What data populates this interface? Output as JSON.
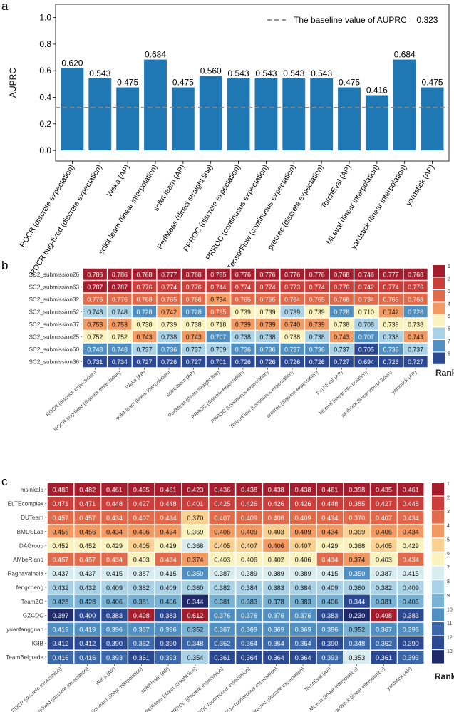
{
  "colors": {
    "bar": "#1f77b4",
    "baseline": "#8a8a8a",
    "rank_palette": [
      "#a51c2c",
      "#cc3e3a",
      "#e06a4a",
      "#f29a62",
      "#fbd191",
      "#fbf3bd",
      "#d8ecf0",
      "#aad2e6",
      "#78b3d5",
      "#4f8fc2",
      "#3a68ab",
      "#2b4893",
      "#1f2a6b"
    ]
  },
  "methods": [
    "ROCR (discrete expectation)",
    "ROCR bug-fixed (discrete expectation)",
    "Weka (AP)",
    "scikit-learn (linear interpolation)",
    "scikit-learn (AP)",
    "PerfMeas (direct straight line)",
    "PRROC (discrete expectation)",
    "PRROC (continuous expectation)",
    "TensorFlow (continuous expectation)",
    "precrec (discrete expectation)",
    "TorchEval (AP)",
    "MLeval (linear interpolation)",
    "yardstick (linear interpolation)",
    "yardstick (AP)"
  ],
  "chart_data": [
    {
      "panel": "a",
      "type": "bar",
      "ylabel": "AUPRC",
      "ylim": [
        -0.08,
        1.1
      ],
      "yticks": [
        "0.0",
        "0.2",
        "0.4",
        "0.6",
        "0.8",
        "1.0"
      ],
      "values": [
        0.62,
        0.543,
        0.475,
        0.684,
        0.475,
        0.56,
        0.543,
        0.543,
        0.543,
        0.543,
        0.475,
        0.416,
        0.684,
        0.475
      ],
      "labels": [
        "0.620",
        "0.543",
        "0.475",
        "0.684",
        "0.475",
        "0.560",
        "0.543",
        "0.543",
        "0.543",
        "0.543",
        "0.475",
        "0.416",
        "0.684",
        "0.475"
      ],
      "baseline": 0.323,
      "legend": "The baseline value of AUPRC = 0.323",
      "legend_position": "top-right"
    },
    {
      "panel": "b",
      "type": "heatmap",
      "rank_title": "Rank",
      "rank_levels": [
        "1",
        "2",
        "3",
        "4",
        "5",
        "6",
        "7",
        "8"
      ],
      "rows": [
        {
          "name": "SC2_submission26",
          "values": [
            "0.786",
            "0.786",
            "0.768",
            "0.777",
            "0.768",
            "0.765",
            "0.776",
            "0.776",
            "0.776",
            "0.776",
            "0.768",
            "0.746",
            "0.777",
            "0.768"
          ],
          "ranks": [
            1,
            1,
            1,
            1,
            1,
            1,
            1,
            1,
            1,
            1,
            1,
            1,
            1,
            1
          ]
        },
        {
          "name": "SC2_submission63",
          "values": [
            "0.787",
            "0.787",
            "0.776",
            "0.774",
            "0.776",
            "0.744",
            "0.774",
            "0.774",
            "0.773",
            "0.774",
            "0.776",
            "0.742",
            "0.774",
            "0.776"
          ],
          "ranks": [
            1,
            1,
            2,
            2,
            2,
            2,
            2,
            2,
            2,
            2,
            2,
            2,
            2,
            2
          ]
        },
        {
          "name": "SC2_submission32",
          "values": [
            "0.776",
            "0.776",
            "0.768",
            "0.765",
            "0.768",
            "0.734",
            "0.765",
            "0.765",
            "0.764",
            "0.765",
            "0.768",
            "0.734",
            "0.765",
            "0.768"
          ],
          "ranks": [
            3,
            3,
            3,
            3,
            3,
            4,
            3,
            3,
            3,
            3,
            3,
            3,
            3,
            3
          ]
        },
        {
          "name": "SC2_submission52",
          "values": [
            "0.748",
            "0.748",
            "0.728",
            "0.742",
            "0.728",
            "0.735",
            "0.739",
            "0.739",
            "0.739",
            "0.739",
            "0.728",
            "0.710",
            "0.742",
            "0.728"
          ],
          "ranks": [
            6,
            6,
            7,
            4,
            7,
            3,
            5,
            5,
            6,
            5,
            7,
            5,
            4,
            7
          ]
        },
        {
          "name": "SC2_submission37",
          "values": [
            "0.753",
            "0.753",
            "0.738",
            "0.739",
            "0.738",
            "0.718",
            "0.739",
            "0.739",
            "0.740",
            "0.739",
            "0.738",
            "0.708",
            "0.739",
            "0.738"
          ],
          "ranks": [
            4,
            4,
            5,
            5,
            5,
            5,
            4,
            4,
            4,
            4,
            5,
            6,
            5,
            5
          ]
        },
        {
          "name": "SC2_submission25",
          "values": [
            "0.752",
            "0.752",
            "0.743",
            "0.738",
            "0.743",
            "0.707",
            "0.738",
            "0.738",
            "0.738",
            "0.738",
            "0.743",
            "0.707",
            "0.738",
            "0.743"
          ],
          "ranks": [
            5,
            5,
            4,
            6,
            4,
            7,
            6,
            6,
            5,
            6,
            4,
            7,
            6,
            4
          ]
        },
        {
          "name": "SC2_submission60",
          "values": [
            "0.748",
            "0.748",
            "0.737",
            "0.736",
            "0.737",
            "0.709",
            "0.736",
            "0.736",
            "0.737",
            "0.736",
            "0.737",
            "0.705",
            "0.736",
            "0.737"
          ],
          "ranks": [
            7,
            7,
            6,
            7,
            6,
            6,
            7,
            7,
            7,
            7,
            6,
            8,
            7,
            6
          ]
        },
        {
          "name": "SC2_submission36",
          "values": [
            "0.731",
            "0.734",
            "0.727",
            "0.726",
            "0.727",
            "0.701",
            "0.726",
            "0.726",
            "0.726",
            "0.726",
            "0.727",
            "0.694",
            "0.726",
            "0.727"
          ],
          "ranks": [
            8,
            8,
            8,
            8,
            8,
            8,
            8,
            8,
            8,
            8,
            8,
            8,
            8,
            8
          ]
        }
      ]
    },
    {
      "panel": "c",
      "type": "heatmap",
      "rank_title": "Rank",
      "rank_levels": [
        "1",
        "2",
        "3",
        "4",
        "5",
        "6",
        "7",
        "8",
        "9",
        "10",
        "11",
        "12",
        "13"
      ],
      "rows": [
        {
          "name": "msinkala",
          "values": [
            "0.483",
            "0.482",
            "0.461",
            "0.435",
            "0.461",
            "0.423",
            "0.436",
            "0.438",
            "0.438",
            "0.438",
            "0.461",
            "0.398",
            "0.435",
            "0.461"
          ],
          "ranks": [
            1,
            1,
            1,
            1,
            1,
            1,
            1,
            1,
            1,
            1,
            1,
            1,
            1,
            1
          ]
        },
        {
          "name": "ELTEcomplex",
          "values": [
            "0.471",
            "0.471",
            "0.448",
            "0.427",
            "0.448",
            "0.401",
            "0.425",
            "0.426",
            "0.426",
            "0.426",
            "0.448",
            "0.385",
            "0.427",
            "0.448"
          ],
          "ranks": [
            2,
            2,
            2,
            2,
            2,
            2,
            2,
            2,
            2,
            2,
            2,
            2,
            2,
            2
          ]
        },
        {
          "name": "DUTeam",
          "values": [
            "0.457",
            "0.457",
            "0.434",
            "0.407",
            "0.434",
            "0.370",
            "0.407",
            "0.409",
            "0.408",
            "0.409",
            "0.434",
            "0.370",
            "0.407",
            "0.434"
          ],
          "ranks": [
            3,
            3,
            3,
            3,
            3,
            5,
            3,
            3,
            3,
            3,
            3,
            3,
            3,
            3
          ]
        },
        {
          "name": "BMDSLab",
          "values": [
            "0.456",
            "0.456",
            "0.434",
            "0.406",
            "0.434",
            "0.369",
            "0.406",
            "0.409",
            "0.403",
            "0.409",
            "0.434",
            "0.369",
            "0.406",
            "0.434"
          ],
          "ranks": [
            4,
            4,
            4,
            4,
            4,
            6,
            4,
            4,
            5,
            4,
            4,
            5,
            4,
            4
          ]
        },
        {
          "name": "DAGroup",
          "values": [
            "0.452",
            "0.452",
            "0.429",
            "0.405",
            "0.429",
            "0.368",
            "0.405",
            "0.407",
            "0.406",
            "0.407",
            "0.429",
            "0.368",
            "0.405",
            "0.429"
          ],
          "ranks": [
            6,
            6,
            6,
            5,
            6,
            7,
            5,
            5,
            4,
            5,
            6,
            6,
            5,
            6
          ]
        },
        {
          "name": "AMbeRland",
          "values": [
            "0.457",
            "0.457",
            "0.434",
            "0.403",
            "0.434",
            "0.374",
            "0.403",
            "0.406",
            "0.402",
            "0.406",
            "0.434",
            "0.374",
            "0.403",
            "0.434"
          ],
          "ranks": [
            3,
            3,
            3,
            6,
            3,
            4,
            6,
            6,
            6,
            6,
            3,
            4,
            6,
            3
          ]
        },
        {
          "name": "RaghavaIndia",
          "values": [
            "0.437",
            "0.437",
            "0.415",
            "0.387",
            "0.415",
            "0.350",
            "0.387",
            "0.389",
            "0.389",
            "0.389",
            "0.415",
            "0.350",
            "0.387",
            "0.415"
          ],
          "ranks": [
            7,
            7,
            7,
            7,
            7,
            10,
            7,
            7,
            7,
            7,
            7,
            10,
            7,
            7
          ]
        },
        {
          "name": "fengcheng",
          "values": [
            "0.432",
            "0.432",
            "0.409",
            "0.382",
            "0.409",
            "0.360",
            "0.382",
            "0.384",
            "0.383",
            "0.384",
            "0.409",
            "0.360",
            "0.382",
            "0.409"
          ],
          "ranks": [
            8,
            8,
            8,
            8,
            8,
            8,
            8,
            8,
            8,
            8,
            8,
            8,
            8,
            8
          ]
        },
        {
          "name": "TeamZO",
          "values": [
            "0.428",
            "0.428",
            "0.406",
            "0.381",
            "0.406",
            "0.344",
            "0.381",
            "0.383",
            "0.378",
            "0.383",
            "0.406",
            "0.344",
            "0.381",
            "0.406"
          ],
          "ranks": [
            9,
            9,
            9,
            9,
            9,
            13,
            9,
            9,
            9,
            9,
            9,
            12,
            9,
            9
          ]
        },
        {
          "name": "GZCDC",
          "values": [
            "0.397",
            "0.400",
            "0.383",
            "0.498",
            "0.383",
            "0.612",
            "0.376",
            "0.376",
            "0.376",
            "0.376",
            "0.383",
            "0.230",
            "0.498",
            "0.383"
          ],
          "ranks": [
            13,
            12,
            12,
            1,
            12,
            1,
            10,
            10,
            10,
            10,
            12,
            13,
            1,
            12
          ]
        },
        {
          "name": "yuanfangguan",
          "values": [
            "0.419",
            "0.419",
            "0.396",
            "0.367",
            "0.396",
            "0.352",
            "0.367",
            "0.369",
            "0.369",
            "0.369",
            "0.396",
            "0.352",
            "0.367",
            "0.396"
          ],
          "ranks": [
            10,
            10,
            10,
            10,
            10,
            9,
            10,
            10,
            10,
            10,
            10,
            9,
            10,
            10
          ]
        },
        {
          "name": "IGIB",
          "values": [
            "0.412",
            "0.412",
            "0.390",
            "0.362",
            "0.390",
            "0.348",
            "0.362",
            "0.364",
            "0.364",
            "0.364",
            "0.390",
            "0.348",
            "0.362",
            "0.390"
          ],
          "ranks": [
            12,
            12,
            12,
            11,
            12,
            11,
            11,
            11,
            11,
            11,
            12,
            11,
            11,
            12
          ]
        },
        {
          "name": "TeamBelgrade",
          "values": [
            "0.416",
            "0.416",
            "0.393",
            "0.361",
            "0.393",
            "0.354",
            "0.361",
            "0.364",
            "0.364",
            "0.364",
            "0.393",
            "0.353",
            "0.361",
            "0.393"
          ],
          "ranks": [
            11,
            11,
            11,
            12,
            11,
            8,
            12,
            12,
            12,
            12,
            11,
            7,
            12,
            11
          ]
        }
      ]
    }
  ],
  "panel_labels": [
    "a",
    "b",
    "c"
  ]
}
